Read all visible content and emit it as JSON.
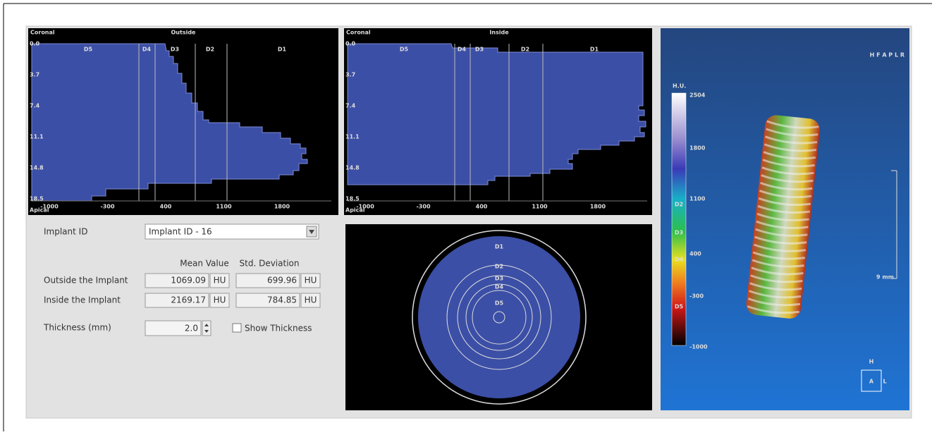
{
  "outside_chart": {
    "top_label": "Coronal",
    "title": "Outside",
    "bottom_label": "Apical",
    "depth_ticks": [
      "0.0",
      "3.7",
      "7.4",
      "11.1",
      "14.8",
      "18.5"
    ],
    "hu_ticks": [
      "-1000",
      "-300",
      "400",
      "1100",
      "1800"
    ],
    "zones": [
      "D5",
      "D4",
      "D3",
      "D2",
      "D1"
    ]
  },
  "inside_chart": {
    "top_label": "Coronal",
    "title": "Inside",
    "bottom_label": "Apical",
    "depth_ticks": [
      "0.0",
      "3.7",
      "7.4",
      "11.1",
      "14.8",
      "18.5"
    ],
    "hu_ticks": [
      "-1000",
      "-300",
      "400",
      "1100",
      "1800"
    ],
    "zones": [
      "D5",
      "D4",
      "D3",
      "D2",
      "D1"
    ]
  },
  "form": {
    "implant_id_label": "Implant ID",
    "implant_id_value": "Implant ID - 16",
    "mean_header": "Mean Value",
    "std_header": "Std. Deviation",
    "rows": [
      {
        "label": "Outside the Implant",
        "mean": "1069.09",
        "mean_unit": "HU",
        "std": "699.96",
        "std_unit": "HU"
      },
      {
        "label": "Inside the Implant",
        "mean": "2169.17",
        "mean_unit": "HU",
        "std": "784.85",
        "std_unit": "HU"
      }
    ],
    "thickness_label": "Thickness (mm)",
    "thickness_value": "2.0",
    "show_thickness": "Show Thickness"
  },
  "polar_view": {
    "zones": [
      "D1",
      "D2",
      "D3",
      "D4",
      "D5"
    ]
  },
  "render_view": {
    "orientation": "H F A P L R",
    "colorbar_title": "H.U.",
    "colorbar_ticks": [
      "2504",
      "1800",
      "1100",
      "400",
      "-300",
      "-1000"
    ],
    "colorbar_zones": [
      "D2",
      "D3",
      "D4",
      "D5"
    ],
    "scale_label": "9 mm",
    "cube": {
      "top": "H",
      "front": "A",
      "side": "L"
    }
  }
}
